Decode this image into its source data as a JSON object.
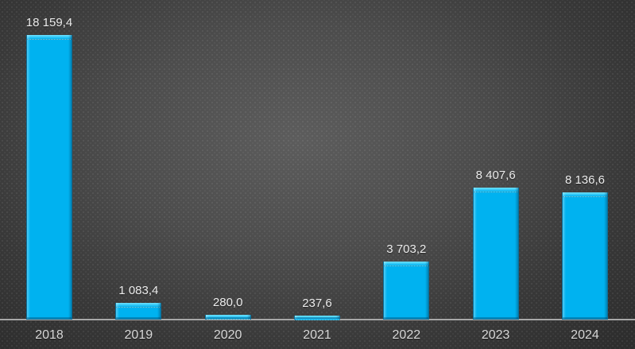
{
  "chart_data": {
    "type": "bar",
    "title": "",
    "xlabel": "",
    "ylabel": "",
    "categories": [
      "2018",
      "2019",
      "2020",
      "2021",
      "2022",
      "2023",
      "2024"
    ],
    "values": [
      18159.4,
      1083.4,
      280.0,
      237.6,
      3703.2,
      8407.6,
      8136.6
    ],
    "value_labels": [
      "18 159,4",
      "1 083,4",
      "280,0",
      "237,6",
      "3 703,2",
      "8 407,6",
      "8 136,6"
    ],
    "ylim": [
      0,
      18159.4
    ],
    "grid": false,
    "legend": false,
    "y_axis_visible": false,
    "x_axis_visible": true,
    "decimal_separator": ",",
    "thousands_separator": " "
  },
  "style": {
    "bar_fill": "#00B2F0",
    "bar_bevel_top": "#6FE3FF",
    "bar_outline": "#0A6E99",
    "axis_line_color": "#A8A8A8",
    "value_label_color": "#EDEDED",
    "category_label_color": "#D9D9D9",
    "background_center": "#5C5C5C",
    "background_edge": "#2B2B2B"
  }
}
